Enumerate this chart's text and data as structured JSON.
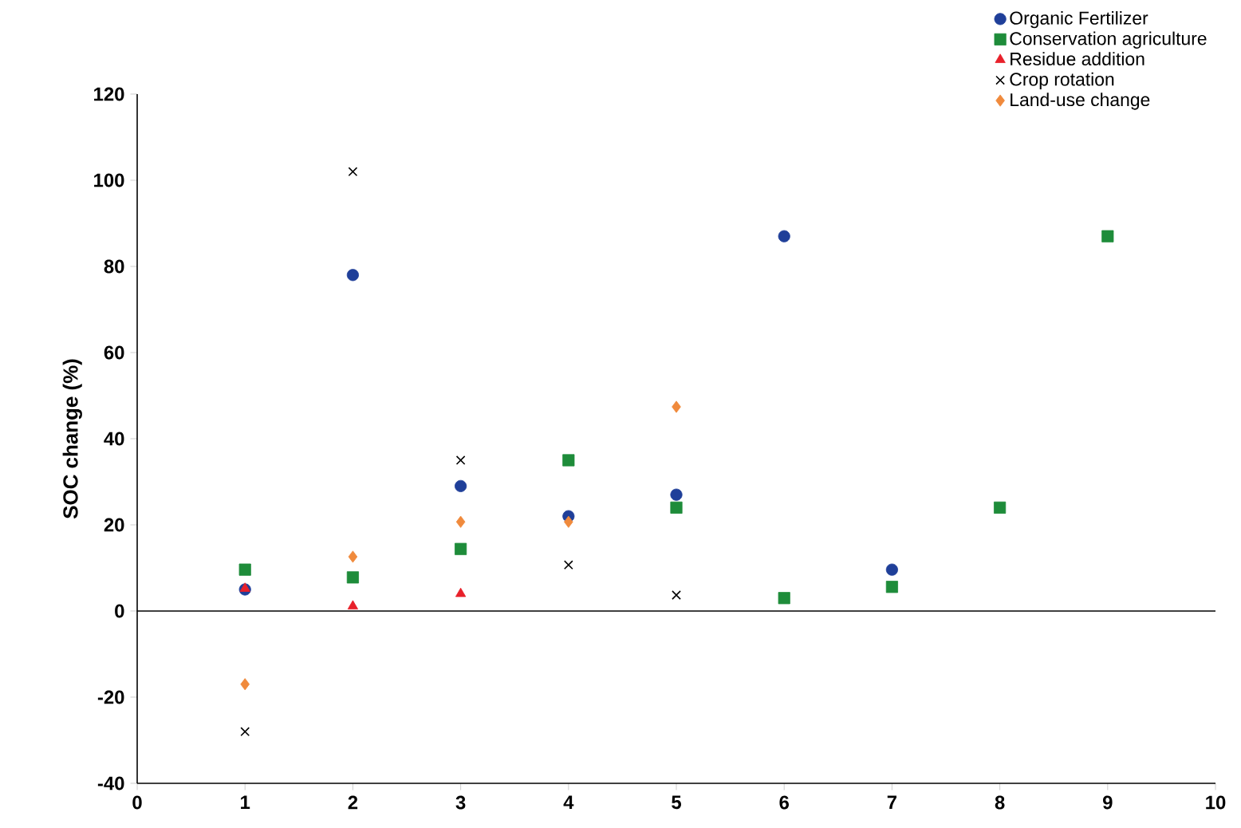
{
  "chart_data": {
    "type": "scatter",
    "ylabel": "SOC change (%)",
    "xlim": [
      0,
      10
    ],
    "ylim": [
      -40,
      120
    ],
    "xticks": [
      0,
      1,
      2,
      3,
      4,
      5,
      6,
      7,
      8,
      9,
      10
    ],
    "yticks": [
      -40,
      -20,
      0,
      20,
      40,
      60,
      80,
      100,
      120
    ],
    "grid": false,
    "legend": "top right",
    "ref_lines": [
      {
        "axis": "y",
        "value": 0,
        "color": "#000000"
      }
    ],
    "series": [
      {
        "name": "Organic Fertilizer",
        "color": "#1f3f99",
        "marker": "circle",
        "x": [
          1,
          2,
          3,
          4,
          5,
          6,
          7
        ],
        "values": [
          5,
          78,
          29,
          22,
          27,
          87,
          9.6
        ]
      },
      {
        "name": "Conservation agriculture",
        "color": "#1e8c3a",
        "marker": "square",
        "x": [
          1,
          2,
          3,
          4,
          5,
          6,
          7,
          8,
          9
        ],
        "values": [
          9.6,
          7.8,
          14.4,
          35,
          24,
          3,
          5.6,
          24,
          87
        ]
      },
      {
        "name": "Residue addition",
        "color": "#e8202a",
        "marker": "triangle",
        "x": [
          1,
          2,
          3
        ],
        "values": [
          5.2,
          1.1,
          4
        ]
      },
      {
        "name": "Crop rotation",
        "color": "#000000",
        "marker": "cross",
        "x": [
          1,
          2,
          3,
          4,
          5
        ],
        "values": [
          -28,
          102,
          35,
          10.7,
          3.7
        ]
      },
      {
        "name": "Land-use change",
        "color": "#f08a3c",
        "marker": "diamond",
        "x": [
          1,
          2,
          3,
          4,
          5
        ],
        "values": [
          -17,
          12.6,
          20.7,
          20.7,
          47.4
        ]
      }
    ]
  }
}
